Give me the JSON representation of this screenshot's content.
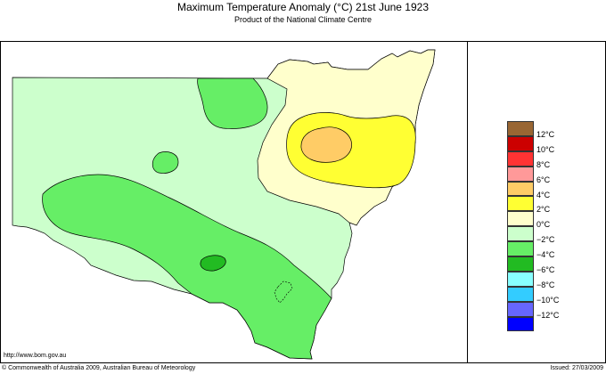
{
  "header": {
    "title": "Maximum Temperature Anomaly (°C)  21st June 1923",
    "subtitle": "Product of the National Climate Centre"
  },
  "colors": {
    "ocean": "#ffffff",
    "anom_minus2_0": "#ccffcc",
    "anom_minus4_minus2": "#66ee66",
    "anom_minus6_minus4": "#22bb22",
    "anom_0_2": "#ffffcc",
    "anom_2_4": "#ffff33",
    "anom_4_6": "#ffcc66"
  },
  "legend": {
    "items": [
      {
        "label": "12°C",
        "color": "#996633"
      },
      {
        "label": "10°C",
        "color": "#cc0000"
      },
      {
        "label": "8°C",
        "color": "#ff3333"
      },
      {
        "label": "6°C",
        "color": "#ff9999"
      },
      {
        "label": "4°C",
        "color": "#ffcc66"
      },
      {
        "label": "2°C",
        "color": "#ffff33"
      },
      {
        "label": "0°C",
        "color": "#ffffcc"
      },
      {
        "label": "−2°C",
        "color": "#ccffcc"
      },
      {
        "label": "−4°C",
        "color": "#66ee66"
      },
      {
        "label": "−6°C",
        "color": "#22bb22"
      },
      {
        "label": "−8°C",
        "color": "#88ffff"
      },
      {
        "label": "−10°C",
        "color": "#33ccff"
      },
      {
        "label": "−12°C",
        "color": "#6666ff"
      },
      {
        "label": "",
        "color": "#0000ff"
      }
    ]
  },
  "footer": {
    "url": "http://www.bom.gov.au",
    "copyright": "© Commonwealth of Australia 2009, Australian Bureau of Meteorology",
    "issued": "Issued: 27/03/2009"
  }
}
